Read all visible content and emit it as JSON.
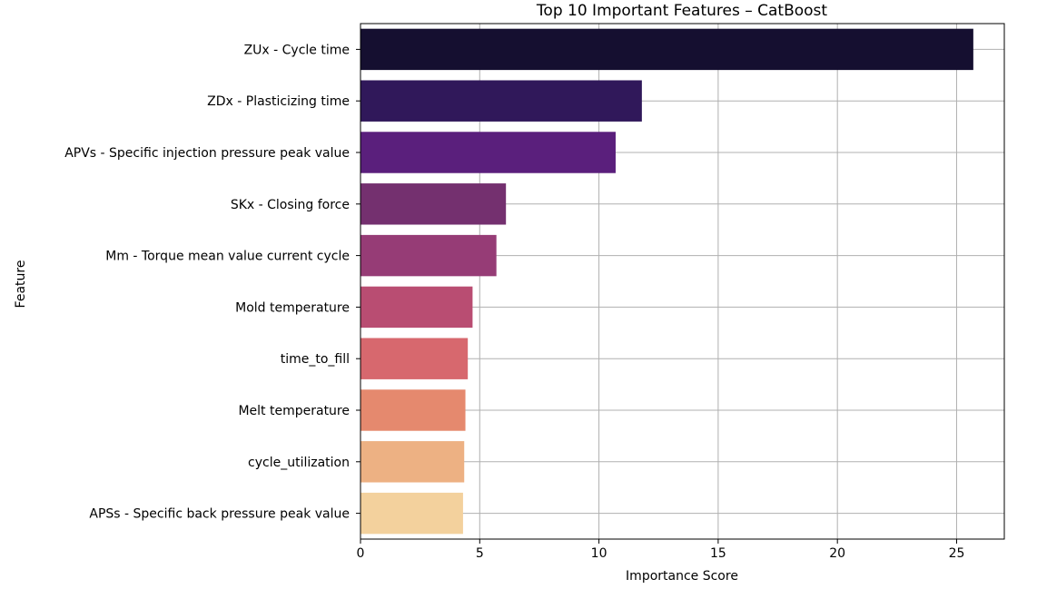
{
  "chart_data": {
    "type": "bar",
    "orientation": "horizontal",
    "title": "Top 10 Important Features – CatBoost",
    "xlabel": "Importance Score",
    "ylabel": "Feature",
    "xlim": [
      0,
      27
    ],
    "xticks": [
      0,
      5,
      10,
      15,
      20,
      25
    ],
    "grid": true,
    "categories": [
      "ZUx - Cycle time",
      "ZDx - Plasticizing time",
      "APVs - Specific injection pressure peak value",
      "SKx - Closing force",
      "Mm - Torque mean value current cycle",
      "Mold temperature",
      "time_to_fill",
      "Melt temperature",
      "cycle_utilization",
      "APSs - Specific back pressure peak value"
    ],
    "values": [
      25.7,
      11.8,
      10.7,
      6.1,
      5.7,
      4.7,
      4.5,
      4.4,
      4.35,
      4.3
    ],
    "colors": [
      "#150f30",
      "#30185a",
      "#5a1f7c",
      "#74306f",
      "#963c76",
      "#b94d72",
      "#d7686e",
      "#e5896e",
      "#edb183",
      "#f3d19d"
    ]
  }
}
